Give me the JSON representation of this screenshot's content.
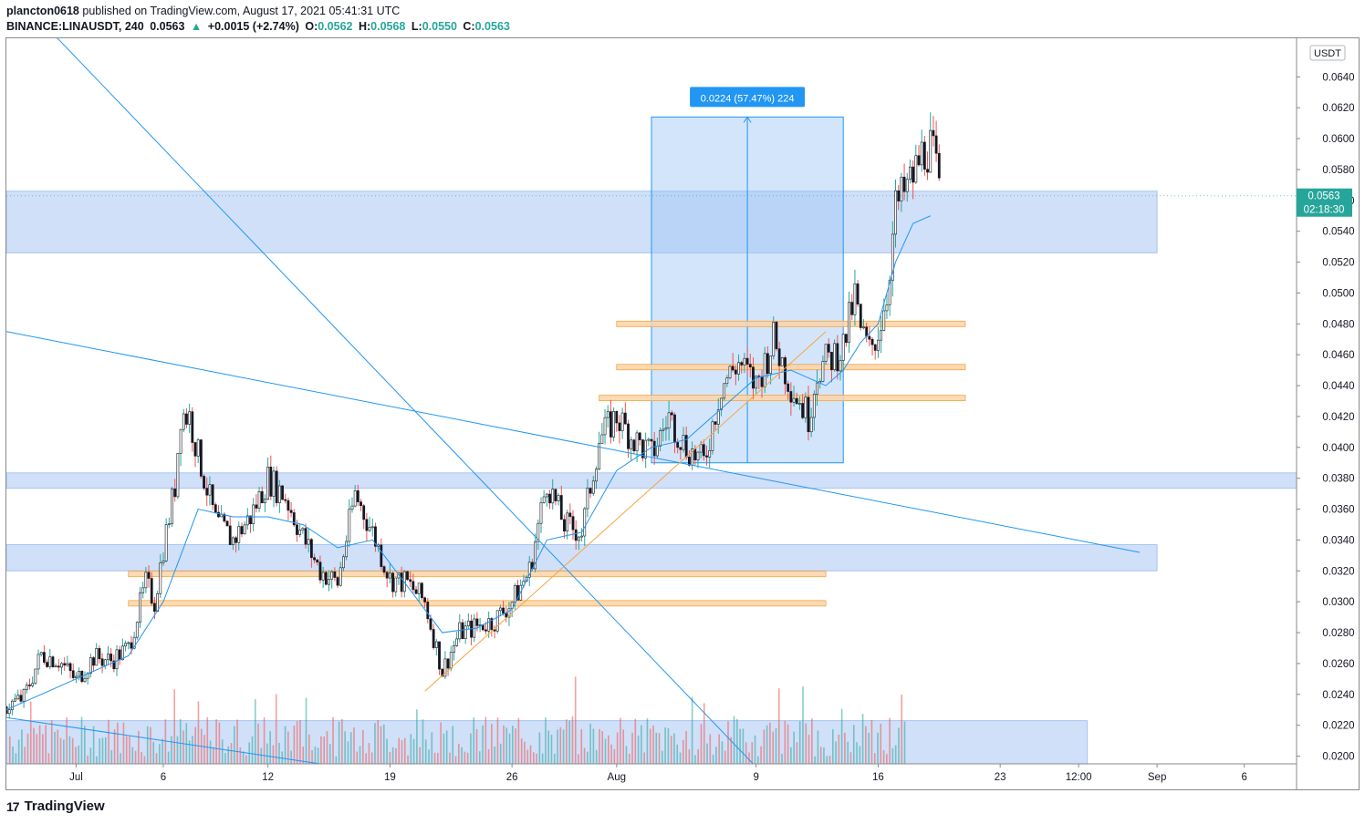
{
  "header": {
    "publisher": "plancton0618",
    "published_text": " published on TradingView.com, August 17, 2021 05:41:31 UTC",
    "symbol": "BINANCE:LINAUSDT, 240",
    "last": "0.0563",
    "change_arrow": "▲",
    "change": "+0.0015 (+2.74%)",
    "o_label": "O:",
    "o": "0.0562",
    "h_label": "H:",
    "h": "0.0568",
    "l_label": "L:",
    "l": "0.0550",
    "c_label": "C:",
    "c": "0.0563"
  },
  "footer": {
    "logo_glyph": "17",
    "brand": "TradingView"
  },
  "colors": {
    "up": "#26a69a",
    "down": "#ef5350",
    "candle_body": "#131722",
    "zone": "#bcd3f5",
    "zone_border": "#6b9be6",
    "orange": "#f5a543",
    "line_blue": "#2196f3",
    "price_tag": "#26a69a",
    "measure": "#2196f3"
  },
  "chart_data": {
    "type": "candlestick",
    "symbol": "BINANCE:LINAUSDT",
    "interval": "240",
    "currency_label": "USDT",
    "y_ticks": [
      "0.0640",
      "0.0620",
      "0.0600",
      "0.0580",
      "0.0560",
      "0.0540",
      "0.0520",
      "0.0500",
      "0.0480",
      "0.0460",
      "0.0440",
      "0.0420",
      "0.0400",
      "0.0380",
      "0.0360",
      "0.0340",
      "0.0320",
      "0.0300",
      "0.0280",
      "0.0260",
      "0.0240",
      "0.0220",
      "0.0200"
    ],
    "y_range": [
      0.0195,
      0.0665
    ],
    "x_ticks": [
      "Jul",
      "6",
      "12",
      "19",
      "26",
      "Aug",
      "9",
      "16",
      "23",
      "12:00",
      "Sep",
      "6"
    ],
    "x_tick_dates": [
      "2021-07-01",
      "2021-07-06",
      "2021-07-12",
      "2021-07-19",
      "2021-07-26",
      "2021-08-01",
      "2021-08-09",
      "2021-08-16",
      "2021-08-23",
      "2021-08-27 12:00",
      "2021-09-01",
      "2021-09-06"
    ],
    "x_range": [
      "2021-06-27",
      "2021-09-09"
    ],
    "last_price": "0.0563",
    "countdown": "02:18:30",
    "price_path": [
      [
        "2021-06-27",
        0.0232
      ],
      [
        "2021-06-28",
        0.0238
      ],
      [
        "2021-06-29",
        0.0266
      ],
      [
        "2021-06-30",
        0.0262
      ],
      [
        "2021-07-01",
        0.0249
      ],
      [
        "2021-07-02",
        0.0264
      ],
      [
        "2021-07-03",
        0.0262
      ],
      [
        "2021-07-04",
        0.027
      ],
      [
        "2021-07-05",
        0.0312
      ],
      [
        "2021-07-05 12:00",
        0.03
      ],
      [
        "2021-07-06",
        0.0335
      ],
      [
        "2021-07-06 16:00",
        0.0375
      ],
      [
        "2021-07-07",
        0.0422
      ],
      [
        "2021-07-07 12:00",
        0.042
      ],
      [
        "2021-07-08",
        0.0395
      ],
      [
        "2021-07-09",
        0.0352
      ],
      [
        "2021-07-10",
        0.034
      ],
      [
        "2021-07-11",
        0.0355
      ],
      [
        "2021-07-12",
        0.038
      ],
      [
        "2021-07-13",
        0.0368
      ],
      [
        "2021-07-14",
        0.0342
      ],
      [
        "2021-07-15",
        0.032
      ],
      [
        "2021-07-16",
        0.0312
      ],
      [
        "2021-07-17",
        0.037
      ],
      [
        "2021-07-18",
        0.0345
      ],
      [
        "2021-07-19",
        0.0315
      ],
      [
        "2021-07-20",
        0.0312
      ],
      [
        "2021-07-21",
        0.03
      ],
      [
        "2021-07-22",
        0.0255
      ],
      [
        "2021-07-23",
        0.028
      ],
      [
        "2021-07-24",
        0.0284
      ],
      [
        "2021-07-25",
        0.0288
      ],
      [
        "2021-07-26",
        0.03
      ],
      [
        "2021-07-27",
        0.032
      ],
      [
        "2021-07-28",
        0.0378
      ],
      [
        "2021-07-29",
        0.035
      ],
      [
        "2021-07-30",
        0.0345
      ],
      [
        "2021-07-31",
        0.0405
      ],
      [
        "2021-08-01",
        0.042
      ],
      [
        "2021-08-02",
        0.0405
      ],
      [
        "2021-08-03",
        0.0395
      ],
      [
        "2021-08-04",
        0.042
      ],
      [
        "2021-08-05",
        0.04
      ],
      [
        "2021-08-06",
        0.039
      ],
      [
        "2021-08-07",
        0.044
      ],
      [
        "2021-08-08",
        0.0455
      ],
      [
        "2021-08-09",
        0.044
      ],
      [
        "2021-08-10",
        0.047
      ],
      [
        "2021-08-11",
        0.044
      ],
      [
        "2021-08-12",
        0.042
      ],
      [
        "2021-08-12 12:00",
        0.045
      ],
      [
        "2021-08-13",
        0.0455
      ],
      [
        "2021-08-14",
        0.0465
      ],
      [
        "2021-08-14 16:00",
        0.0498
      ],
      [
        "2021-08-15",
        0.0475
      ],
      [
        "2021-08-15 12:00",
        0.0462
      ],
      [
        "2021-08-16",
        0.0475
      ],
      [
        "2021-08-16 12:00",
        0.05
      ],
      [
        "2021-08-17",
        0.0555
      ],
      [
        "2021-08-18",
        0.0575
      ],
      [
        "2021-08-18 12:00",
        0.059
      ],
      [
        "2021-08-19",
        0.0595
      ],
      [
        "2021-08-19 08:00",
        0.058
      ],
      [
        "2021-08-19 12:00",
        0.0563
      ]
    ],
    "ema_path": [
      [
        "2021-06-27",
        0.023
      ],
      [
        "2021-07-01",
        0.025
      ],
      [
        "2021-07-04",
        0.0265
      ],
      [
        "2021-07-06",
        0.03
      ],
      [
        "2021-07-08",
        0.036
      ],
      [
        "2021-07-10",
        0.0355
      ],
      [
        "2021-07-12",
        0.0355
      ],
      [
        "2021-07-14",
        0.035
      ],
      [
        "2021-07-16",
        0.0335
      ],
      [
        "2021-07-18",
        0.034
      ],
      [
        "2021-07-20",
        0.031
      ],
      [
        "2021-07-22",
        0.028
      ],
      [
        "2021-07-24",
        0.0283
      ],
      [
        "2021-07-26",
        0.0295
      ],
      [
        "2021-07-28",
        0.034
      ],
      [
        "2021-07-30",
        0.0345
      ],
      [
        "2021-08-01",
        0.0385
      ],
      [
        "2021-08-03",
        0.04
      ],
      [
        "2021-08-05",
        0.0405
      ],
      [
        "2021-08-07",
        0.0425
      ],
      [
        "2021-08-09",
        0.0445
      ],
      [
        "2021-08-11",
        0.045
      ],
      [
        "2021-08-13",
        0.044
      ],
      [
        "2021-08-14",
        0.045
      ],
      [
        "2021-08-15",
        0.0468
      ],
      [
        "2021-08-16",
        0.048
      ],
      [
        "2021-08-17",
        0.052
      ],
      [
        "2021-08-18",
        0.0545
      ],
      [
        "2021-08-19",
        0.055
      ]
    ],
    "volume_scale_note": "",
    "zones": [
      {
        "from": "2021-06-27",
        "to": "2021-09-01",
        "top": 0.0566,
        "bottom": 0.0526
      },
      {
        "from": "2021-06-27",
        "to": "2021-09-09",
        "top": 0.03835,
        "bottom": 0.03735
      },
      {
        "from": "2021-06-27",
        "to": "2021-09-01",
        "top": 0.0337,
        "bottom": 0.032
      },
      {
        "from": "2021-06-27",
        "to": "2021-08-28",
        "top": 0.0223,
        "bottom": 0.0195
      }
    ],
    "support_lines": [
      {
        "from": "2021-07-04",
        "to": "2021-08-13",
        "price": 0.0318
      },
      {
        "from": "2021-07-04",
        "to": "2021-08-13",
        "price": 0.0299
      },
      {
        "from": "2021-08-01",
        "to": "2021-08-21",
        "price": 0.048
      },
      {
        "from": "2021-08-01",
        "to": "2021-08-21",
        "price": 0.0452
      },
      {
        "from": "2021-07-31",
        "to": "2021-08-21",
        "price": 0.0432
      }
    ],
    "trend_lines": [
      {
        "color": "blue",
        "from": [
          "2021-06-29",
          0.0676
        ],
        "to": [
          "2021-08-09",
          0.0193
        ]
      },
      {
        "color": "blue",
        "from": [
          "2021-06-27",
          0.0475
        ],
        "to": [
          "2021-08-31",
          0.0332
        ]
      },
      {
        "color": "blue",
        "from": [
          "2021-06-27",
          0.0225
        ],
        "to": [
          "2021-07-15",
          0.0195
        ]
      },
      {
        "color": "orange",
        "from": [
          "2021-07-21",
          0.0242
        ],
        "to": [
          "2021-08-13",
          0.0475
        ]
      }
    ],
    "measure": {
      "from": "2021-08-03",
      "to": "2021-08-14",
      "low": 0.039,
      "high": 0.0614,
      "label": "0.0224 (57.47%) 224"
    }
  }
}
